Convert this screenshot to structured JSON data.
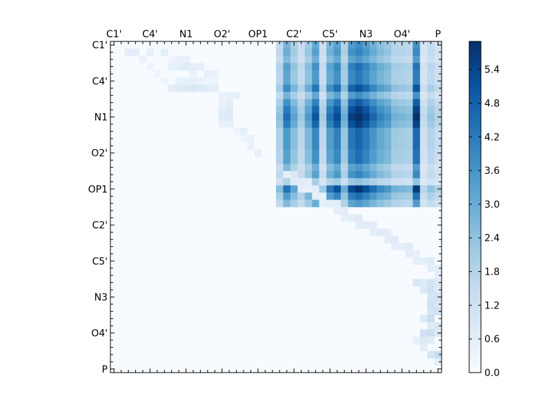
{
  "chart_data": {
    "type": "heatmap",
    "title": "",
    "xlabel": "",
    "ylabel": "",
    "n_rows": 46,
    "n_cols": 46,
    "x_tick_labels": [
      "C1'",
      "C4'",
      "N1",
      "O2'",
      "OP1",
      "C2'",
      "C5'",
      "N3",
      "O4'",
      "P"
    ],
    "y_tick_labels": [
      "C1'",
      "C4'",
      "N1",
      "O2'",
      "OP1",
      "C2'",
      "C5'",
      "N3",
      "O4'",
      "P"
    ],
    "tick_label_indices": [
      0,
      5,
      10,
      15,
      20,
      25,
      30,
      35,
      40,
      45
    ],
    "colorbar": {
      "min": 0.0,
      "max": 5.9,
      "ticks": [
        0.0,
        0.6,
        1.2,
        1.8,
        2.4,
        3.0,
        3.6,
        4.2,
        4.8,
        5.4
      ],
      "tick_labels": [
        "0.0",
        "0.6",
        "1.2",
        "1.8",
        "2.4",
        "3.0",
        "3.6",
        "4.2",
        "4.8",
        "5.4"
      ]
    },
    "colormap": [
      "#f7fbff",
      "#deebf7",
      "#c6dbef",
      "#9ecae1",
      "#6baed6",
      "#4292c6",
      "#2171b5",
      "#08519c",
      "#08306b"
    ],
    "axis_color": "#000000",
    "background_value": 0.0,
    "cells": [
      [
        1,
        2,
        0.6
      ],
      [
        1,
        3,
        0.6
      ],
      [
        1,
        5,
        0.5
      ],
      [
        1,
        7,
        0.6
      ],
      [
        2,
        4,
        0.4
      ],
      [
        2,
        8,
        0.3
      ],
      [
        2,
        9,
        0.5
      ],
      [
        2,
        10,
        0.4
      ],
      [
        3,
        5,
        0.3
      ],
      [
        3,
        8,
        0.5
      ],
      [
        3,
        9,
        0.6
      ],
      [
        3,
        10,
        0.7
      ],
      [
        3,
        11,
        0.6
      ],
      [
        3,
        12,
        0.5
      ],
      [
        4,
        6,
        0.3
      ],
      [
        4,
        11,
        0.4
      ],
      [
        4,
        13,
        0.5
      ],
      [
        4,
        14,
        0.4
      ],
      [
        5,
        7,
        0.3
      ],
      [
        5,
        9,
        0.4
      ],
      [
        5,
        10,
        0.5
      ],
      [
        5,
        11,
        0.5
      ],
      [
        5,
        12,
        0.4
      ],
      [
        5,
        13,
        0.3
      ],
      [
        5,
        14,
        0.3
      ],
      [
        6,
        8,
        0.6
      ],
      [
        6,
        9,
        0.7
      ],
      [
        6,
        10,
        0.8
      ],
      [
        6,
        11,
        0.9
      ],
      [
        6,
        12,
        0.8
      ],
      [
        6,
        13,
        0.7
      ],
      [
        6,
        14,
        0.6
      ],
      [
        7,
        15,
        0.4
      ],
      [
        7,
        16,
        0.5
      ],
      [
        7,
        17,
        0.5
      ],
      [
        8,
        15,
        0.4
      ],
      [
        8,
        16,
        0.6
      ],
      [
        9,
        15,
        0.6
      ],
      [
        9,
        16,
        0.7
      ],
      [
        10,
        15,
        0.7
      ],
      [
        10,
        16,
        0.8
      ],
      [
        11,
        15,
        0.4
      ],
      [
        11,
        16,
        0.5
      ],
      [
        12,
        17,
        0.3
      ],
      [
        12,
        18,
        0.5
      ],
      [
        13,
        18,
        0.3
      ],
      [
        13,
        19,
        0.4
      ],
      [
        14,
        19,
        0.4
      ],
      [
        15,
        20,
        0.5
      ],
      [
        18,
        24,
        0.6
      ],
      [
        18,
        25,
        0.8
      ],
      [
        19,
        25,
        0.7
      ],
      [
        19,
        26,
        0.7
      ],
      [
        19,
        27,
        0.6
      ],
      [
        20,
        26,
        0.6
      ],
      [
        20,
        27,
        0.5
      ],
      [
        20,
        28,
        0.6
      ],
      [
        21,
        28,
        0.6
      ],
      [
        21,
        29,
        0.5
      ],
      [
        22,
        29,
        0.5
      ],
      [
        22,
        30,
        0.6
      ],
      [
        22,
        31,
        0.6
      ],
      [
        23,
        31,
        0.5
      ],
      [
        23,
        32,
        0.6
      ],
      [
        24,
        32,
        0.5
      ],
      [
        24,
        33,
        0.6
      ],
      [
        24,
        34,
        0.7
      ],
      [
        25,
        34,
        0.6
      ],
      [
        25,
        35,
        0.7
      ],
      [
        25,
        36,
        0.6
      ],
      [
        26,
        36,
        0.6
      ],
      [
        26,
        37,
        0.7
      ],
      [
        26,
        38,
        0.6
      ],
      [
        27,
        38,
        0.6
      ],
      [
        27,
        39,
        0.7
      ],
      [
        28,
        39,
        0.6
      ],
      [
        28,
        40,
        0.6
      ],
      [
        28,
        41,
        0.7
      ],
      [
        29,
        41,
        0.6
      ],
      [
        29,
        42,
        0.5
      ],
      [
        30,
        42,
        0.6
      ],
      [
        30,
        43,
        0.6
      ],
      [
        30,
        44,
        0.7
      ],
      [
        31,
        44,
        0.6
      ],
      [
        31,
        45,
        0.6
      ],
      [
        32,
        45,
        0.5
      ],
      [
        33,
        42,
        0.9
      ],
      [
        33,
        43,
        0.7
      ],
      [
        33,
        44,
        1.1
      ],
      [
        33,
        45,
        0.8
      ],
      [
        34,
        43,
        0.8
      ],
      [
        34,
        44,
        1.2
      ],
      [
        34,
        45,
        0.8
      ],
      [
        35,
        44,
        1.0
      ],
      [
        35,
        45,
        1.1
      ],
      [
        36,
        44,
        1.2
      ],
      [
        36,
        45,
        0.9
      ],
      [
        37,
        44,
        1.0
      ],
      [
        37,
        45,
        1.2
      ],
      [
        38,
        43,
        0.8
      ],
      [
        38,
        44,
        1.3
      ],
      [
        39,
        44,
        0.7
      ],
      [
        39,
        45,
        0.9
      ],
      [
        40,
        43,
        1.2
      ],
      [
        40,
        44,
        1.3
      ],
      [
        40,
        45,
        0.8
      ],
      [
        41,
        42,
        0.5
      ],
      [
        41,
        43,
        0.8
      ],
      [
        41,
        44,
        0.7
      ],
      [
        42,
        43,
        0.6
      ],
      [
        43,
        44,
        1.0
      ],
      [
        43,
        45,
        1.4
      ],
      [
        44,
        45,
        0.6
      ]
    ],
    "block_upper": {
      "rows": [
        0,
        1,
        2,
        3,
        4,
        5,
        6,
        7,
        8,
        9,
        10,
        11,
        12,
        13,
        14,
        15,
        16,
        17,
        18,
        19,
        20,
        21,
        22
      ],
      "cols": [
        23,
        24,
        25,
        26,
        27,
        28,
        29,
        30,
        31,
        32,
        33,
        34,
        35,
        36,
        37,
        38,
        39,
        40,
        41,
        42,
        43,
        44,
        45
      ],
      "col_strength": [
        1.9,
        3.5,
        2.5,
        1.7,
        2.7,
        3.9,
        1.6,
        3.4,
        4.1,
        2.3,
        4.3,
        4.7,
        4.2,
        3.6,
        3.1,
        2.8,
        2.2,
        2.1,
        2.0,
        4.6,
        1.2,
        1.8,
        1.4
      ],
      "row_strength": [
        0.8,
        0.85,
        0.75,
        0.95,
        0.9,
        0.9,
        1.1,
        0.8,
        1.05,
        1.2,
        1.3,
        1.2,
        1.0,
        1.0,
        1.0,
        0.95,
        0.95,
        0.75,
        0.85,
        0.5,
        1.3,
        1.0,
        0.75
      ]
    }
  }
}
